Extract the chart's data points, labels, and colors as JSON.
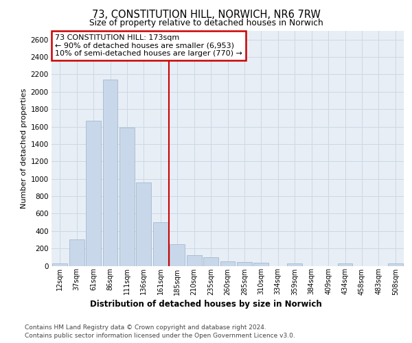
{
  "title": "73, CONSTITUTION HILL, NORWICH, NR6 7RW",
  "subtitle": "Size of property relative to detached houses in Norwich",
  "xlabel": "Distribution of detached houses by size in Norwich",
  "ylabel": "Number of detached properties",
  "annotation_line1": "73 CONSTITUTION HILL: 173sqm",
  "annotation_line2": "← 90% of detached houses are smaller (6,953)",
  "annotation_line3": "10% of semi-detached houses are larger (770) →",
  "bar_color": "#c8d8ea",
  "bar_edge_color": "#9ab0c8",
  "vline_color": "#cc0000",
  "grid_color": "#ccd8e4",
  "bg_color": "#e8eef5",
  "categories": [
    "12sqm",
    "37sqm",
    "61sqm",
    "86sqm",
    "111sqm",
    "136sqm",
    "161sqm",
    "185sqm",
    "210sqm",
    "235sqm",
    "260sqm",
    "285sqm",
    "310sqm",
    "334sqm",
    "359sqm",
    "384sqm",
    "409sqm",
    "434sqm",
    "458sqm",
    "483sqm",
    "508sqm"
  ],
  "values": [
    25,
    300,
    1670,
    2140,
    1590,
    960,
    500,
    250,
    120,
    100,
    50,
    40,
    35,
    0,
    30,
    0,
    0,
    25,
    0,
    0,
    25
  ],
  "ylim": [
    0,
    2700
  ],
  "yticks": [
    0,
    200,
    400,
    600,
    800,
    1000,
    1200,
    1400,
    1600,
    1800,
    2000,
    2200,
    2400,
    2600
  ],
  "vline_x": 6.5,
  "footer1": "Contains HM Land Registry data © Crown copyright and database right 2024.",
  "footer2": "Contains public sector information licensed under the Open Government Licence v3.0."
}
